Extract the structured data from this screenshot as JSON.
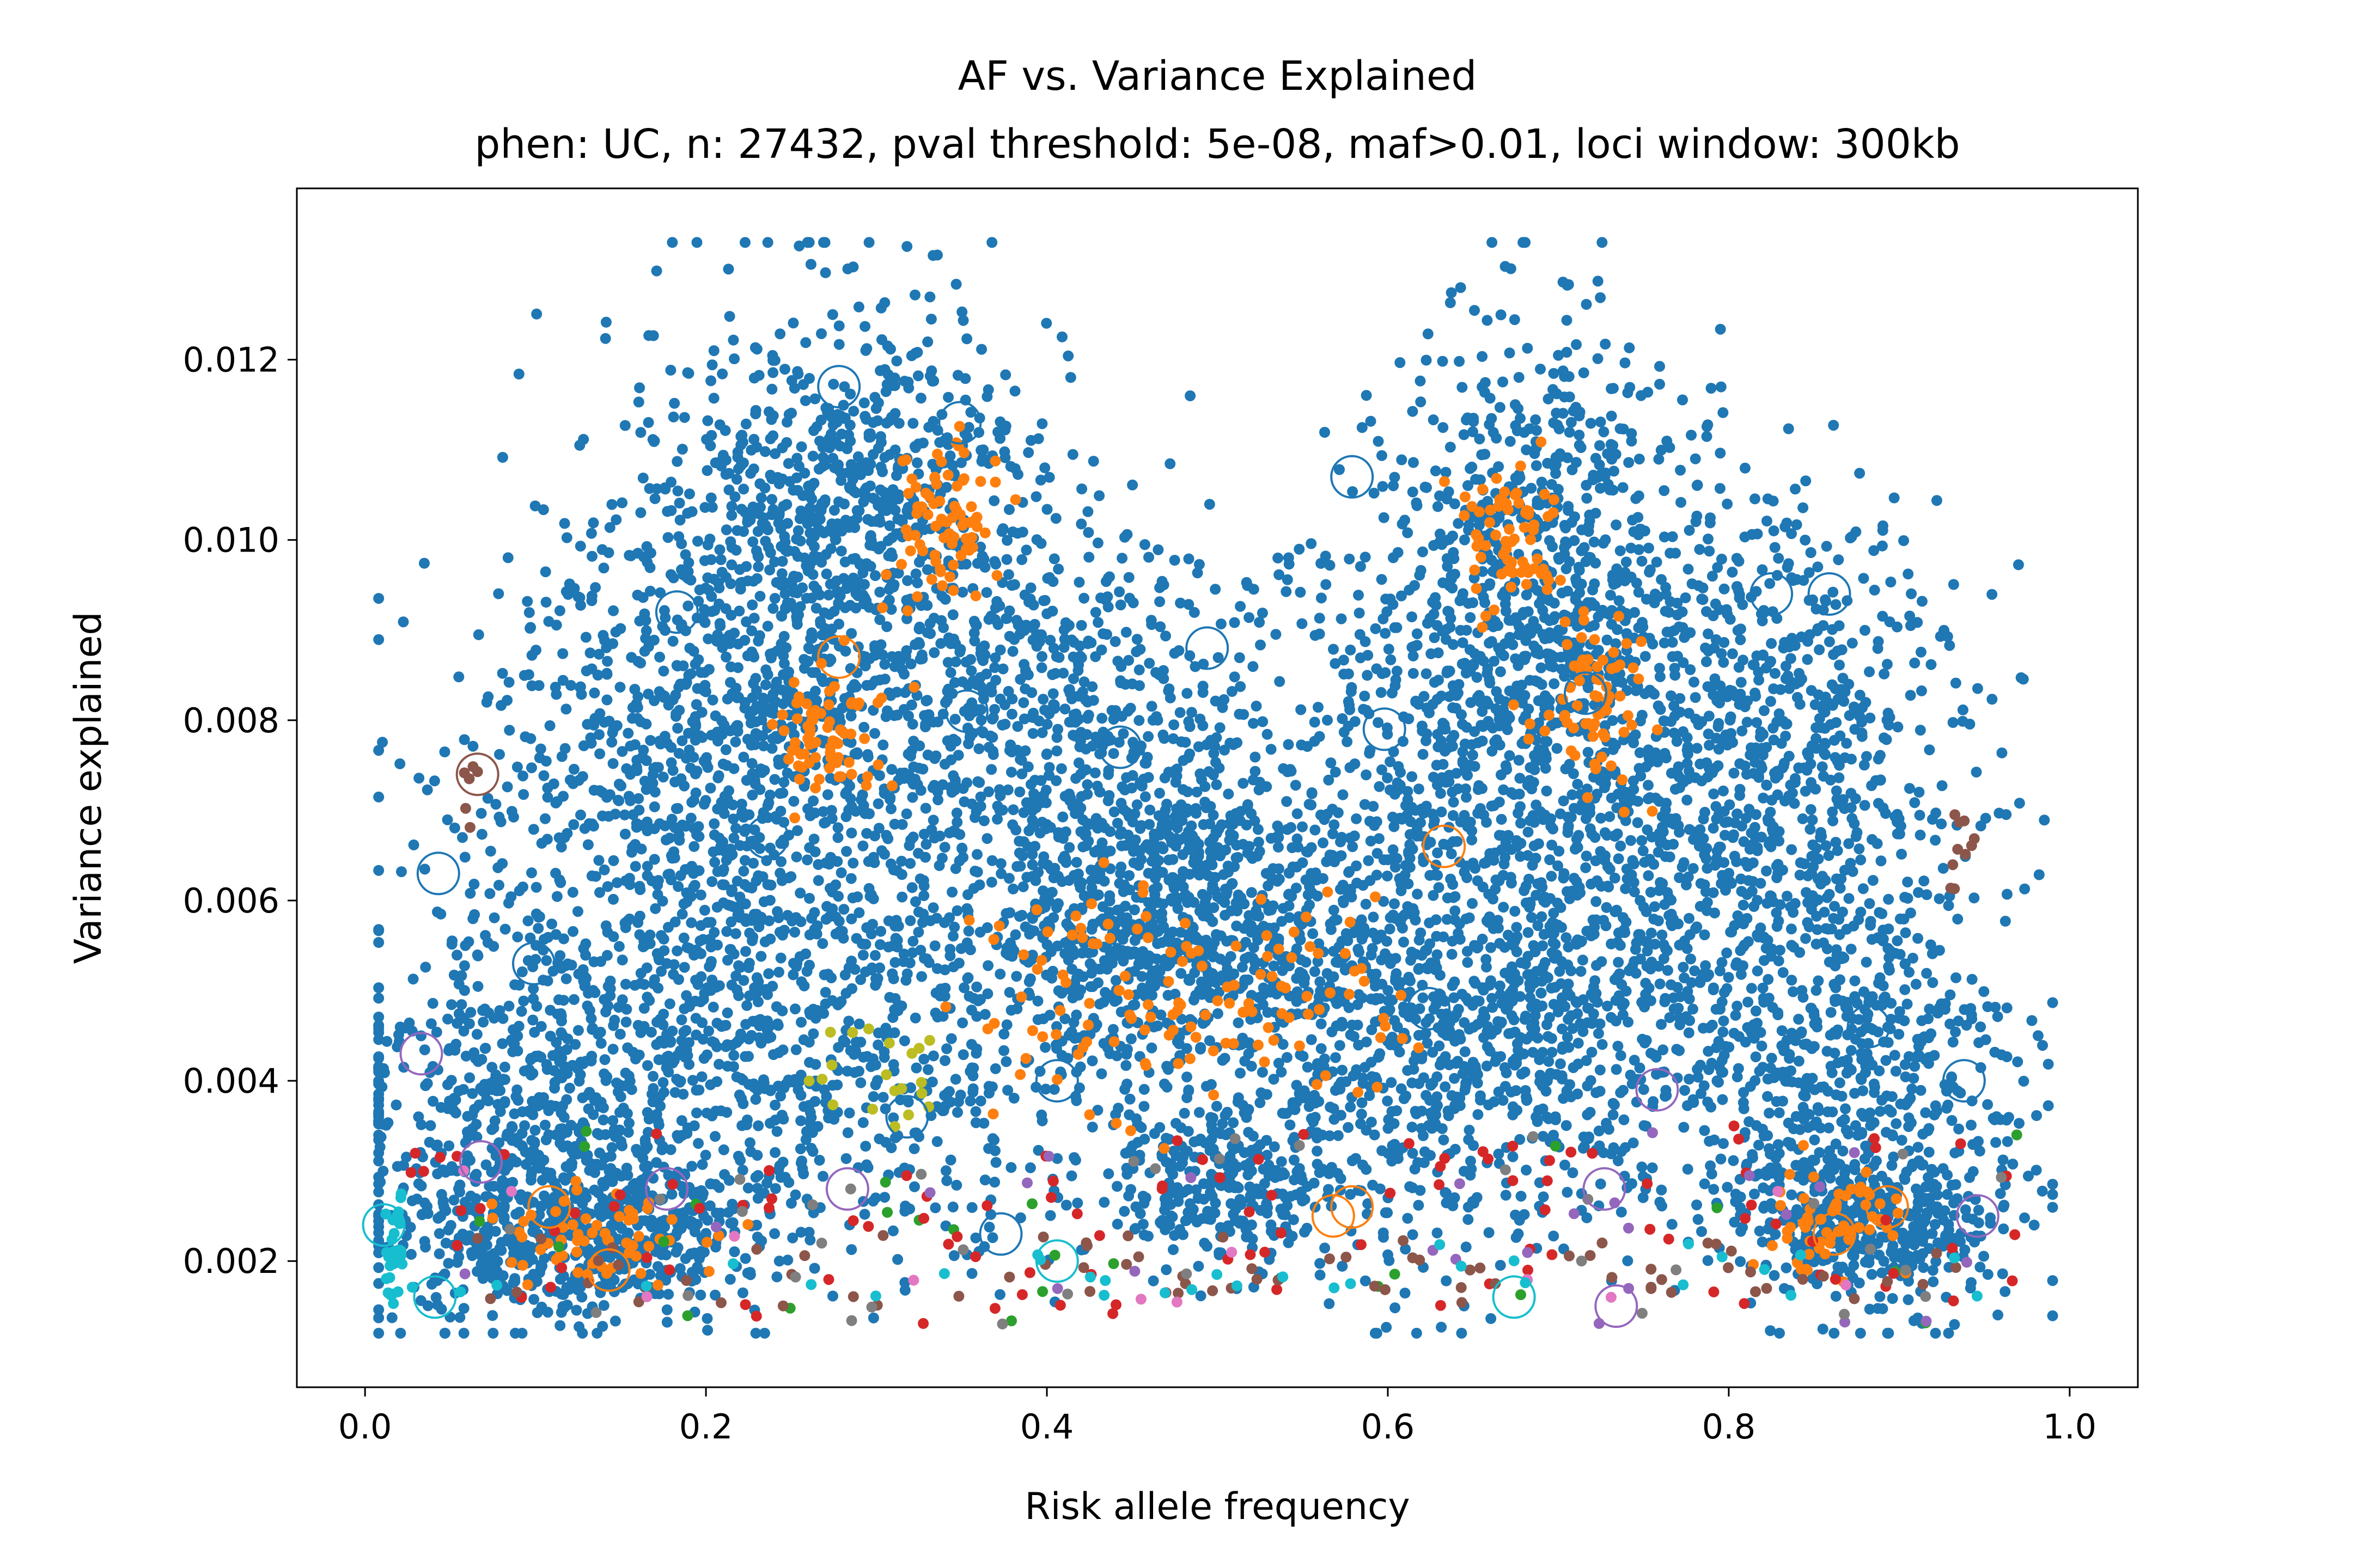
{
  "chart_data": {
    "type": "scatter",
    "title": "AF vs. Variance Explained",
    "subtitle": "phen: UC, n: 27432, pval threshold: 5e-08, maf>0.01, loci window: 300kb",
    "xlabel": "Risk allele frequency",
    "ylabel": "Variance explained",
    "xlim": [
      -0.04,
      1.04
    ],
    "ylim": [
      0.0006,
      0.0139
    ],
    "xticks": [
      0.0,
      0.2,
      0.4,
      0.6,
      0.8,
      1.0
    ],
    "xtick_labels": [
      "0.0",
      "0.2",
      "0.4",
      "0.6",
      "0.8",
      "1.0"
    ],
    "yticks": [
      0.002,
      0.004,
      0.006,
      0.008,
      0.01,
      0.012
    ],
    "ytick_labels": [
      "0.002",
      "0.004",
      "0.006",
      "0.008",
      "0.010",
      "0.012"
    ],
    "grid": false,
    "legend": "none",
    "colors": [
      "#1f77b4",
      "#ff7f0e",
      "#2ca02c",
      "#d62728",
      "#9467bd",
      "#8c564b",
      "#e377c2",
      "#7f7f7f",
      "#bcbd22",
      "#17becf"
    ],
    "clusters": [
      {
        "x": 0.27,
        "y": 0.009,
        "sx": 0.07,
        "sy": 0.0018,
        "n": 1100
      },
      {
        "x": 0.3,
        "y": 0.0105,
        "sx": 0.05,
        "sy": 0.0008,
        "n": 300
      },
      {
        "x": 0.17,
        "y": 0.0065,
        "sx": 0.07,
        "sy": 0.0018,
        "n": 700
      },
      {
        "x": 0.1,
        "y": 0.0035,
        "sx": 0.06,
        "sy": 0.0011,
        "n": 650
      },
      {
        "x": 0.13,
        "y": 0.0023,
        "sx": 0.05,
        "sy": 0.0004,
        "n": 450
      },
      {
        "x": 0.3,
        "y": 0.0045,
        "sx": 0.08,
        "sy": 0.0012,
        "n": 600
      },
      {
        "x": 0.45,
        "y": 0.0065,
        "sx": 0.06,
        "sy": 0.0011,
        "n": 550
      },
      {
        "x": 0.5,
        "y": 0.0055,
        "sx": 0.06,
        "sy": 0.001,
        "n": 650
      },
      {
        "x": 0.5,
        "y": 0.0028,
        "sx": 0.03,
        "sy": 0.0004,
        "n": 250
      },
      {
        "x": 0.42,
        "y": 0.0085,
        "sx": 0.05,
        "sy": 0.001,
        "n": 250
      },
      {
        "x": 0.63,
        "y": 0.0075,
        "sx": 0.05,
        "sy": 0.0014,
        "n": 450
      },
      {
        "x": 0.69,
        "y": 0.01,
        "sx": 0.05,
        "sy": 0.0012,
        "n": 550
      },
      {
        "x": 0.75,
        "y": 0.007,
        "sx": 0.06,
        "sy": 0.0016,
        "n": 800
      },
      {
        "x": 0.85,
        "y": 0.0075,
        "sx": 0.05,
        "sy": 0.0015,
        "n": 450
      },
      {
        "x": 0.87,
        "y": 0.004,
        "sx": 0.05,
        "sy": 0.0012,
        "n": 550
      },
      {
        "x": 0.88,
        "y": 0.0024,
        "sx": 0.04,
        "sy": 0.0004,
        "n": 350
      },
      {
        "x": 0.67,
        "y": 0.0045,
        "sx": 0.07,
        "sy": 0.0012,
        "n": 500
      },
      {
        "x": 0.6,
        "y": 0.004,
        "sx": 0.06,
        "sy": 0.0012,
        "n": 300
      }
    ],
    "minor_series_counts": {
      "#ff7f0e": 550,
      "#2ca02c": 25,
      "#d62728": 110,
      "#9467bd": 25,
      "#8c564b": 90,
      "#e377c2": 12,
      "#7f7f7f": 35,
      "#bcbd22": 20,
      "#17becf": 60
    },
    "orange_clusters": [
      {
        "x": 0.43,
        "y": 0.005,
        "sx": 0.04,
        "sy": 0.0007
      },
      {
        "x": 0.55,
        "y": 0.0048,
        "sx": 0.04,
        "sy": 0.0006
      },
      {
        "x": 0.27,
        "y": 0.0078,
        "sx": 0.015,
        "sy": 0.0004
      },
      {
        "x": 0.34,
        "y": 0.0102,
        "sx": 0.015,
        "sy": 0.0005
      },
      {
        "x": 0.72,
        "y": 0.008,
        "sx": 0.015,
        "sy": 0.0006
      },
      {
        "x": 0.67,
        "y": 0.0101,
        "sx": 0.015,
        "sy": 0.0004
      },
      {
        "x": 0.13,
        "y": 0.0023,
        "sx": 0.03,
        "sy": 0.0003
      },
      {
        "x": 0.86,
        "y": 0.0024,
        "sx": 0.02,
        "sy": 0.0003
      }
    ],
    "circled_points": [
      {
        "x": 0.278,
        "y": 0.0117,
        "color": "#1f77b4"
      },
      {
        "x": 0.349,
        "y": 0.0113,
        "color": "#1f77b4"
      },
      {
        "x": 0.579,
        "y": 0.0107,
        "color": "#1f77b4"
      },
      {
        "x": 0.183,
        "y": 0.0092,
        "color": "#1f77b4"
      },
      {
        "x": 0.494,
        "y": 0.0088,
        "color": "#1f77b4"
      },
      {
        "x": 0.353,
        "y": 0.0081,
        "color": "#1f77b4"
      },
      {
        "x": 0.443,
        "y": 0.0077,
        "color": "#1f77b4"
      },
      {
        "x": 0.236,
        "y": 0.0067,
        "color": "#1f77b4"
      },
      {
        "x": 0.043,
        "y": 0.0063,
        "color": "#1f77b4"
      },
      {
        "x": 0.825,
        "y": 0.0094,
        "color": "#1f77b4"
      },
      {
        "x": 0.859,
        "y": 0.0094,
        "color": "#1f77b4"
      },
      {
        "x": 0.598,
        "y": 0.0079,
        "color": "#1f77b4"
      },
      {
        "x": 0.716,
        "y": 0.0083,
        "color": "#1f77b4"
      },
      {
        "x": 0.099,
        "y": 0.0053,
        "color": "#1f77b4"
      },
      {
        "x": 0.882,
        "y": 0.0046,
        "color": "#1f77b4"
      },
      {
        "x": 0.938,
        "y": 0.004,
        "color": "#1f77b4"
      },
      {
        "x": 0.624,
        "y": 0.0048,
        "color": "#1f77b4"
      },
      {
        "x": 0.406,
        "y": 0.004,
        "color": "#1f77b4"
      },
      {
        "x": 0.373,
        "y": 0.0023,
        "color": "#1f77b4"
      },
      {
        "x": 0.318,
        "y": 0.0036,
        "color": "#1f77b4"
      },
      {
        "x": 0.278,
        "y": 0.0087,
        "color": "#ff7f0e"
      },
      {
        "x": 0.633,
        "y": 0.0066,
        "color": "#ff7f0e"
      },
      {
        "x": 0.579,
        "y": 0.0026,
        "color": "#ff7f0e"
      },
      {
        "x": 0.568,
        "y": 0.0025,
        "color": "#ff7f0e"
      },
      {
        "x": 0.893,
        "y": 0.0026,
        "color": "#ff7f0e"
      },
      {
        "x": 0.862,
        "y": 0.0023,
        "color": "#ff7f0e"
      },
      {
        "x": 0.108,
        "y": 0.0026,
        "color": "#ff7f0e"
      },
      {
        "x": 0.143,
        "y": 0.0019,
        "color": "#ff7f0e"
      },
      {
        "x": 0.066,
        "y": 0.0074,
        "color": "#8c564b"
      },
      {
        "x": 0.033,
        "y": 0.0043,
        "color": "#9467bd"
      },
      {
        "x": 0.068,
        "y": 0.0031,
        "color": "#9467bd"
      },
      {
        "x": 0.177,
        "y": 0.0028,
        "color": "#9467bd"
      },
      {
        "x": 0.283,
        "y": 0.0028,
        "color": "#9467bd"
      },
      {
        "x": 0.758,
        "y": 0.0039,
        "color": "#9467bd"
      },
      {
        "x": 0.727,
        "y": 0.0028,
        "color": "#9467bd"
      },
      {
        "x": 0.734,
        "y": 0.0015,
        "color": "#9467bd"
      },
      {
        "x": 0.946,
        "y": 0.0025,
        "color": "#9467bd"
      },
      {
        "x": 0.011,
        "y": 0.0024,
        "color": "#17becf"
      },
      {
        "x": 0.041,
        "y": 0.0016,
        "color": "#17becf"
      },
      {
        "x": 0.674,
        "y": 0.0016,
        "color": "#17becf"
      },
      {
        "x": 0.406,
        "y": 0.002,
        "color": "#17becf"
      }
    ]
  }
}
